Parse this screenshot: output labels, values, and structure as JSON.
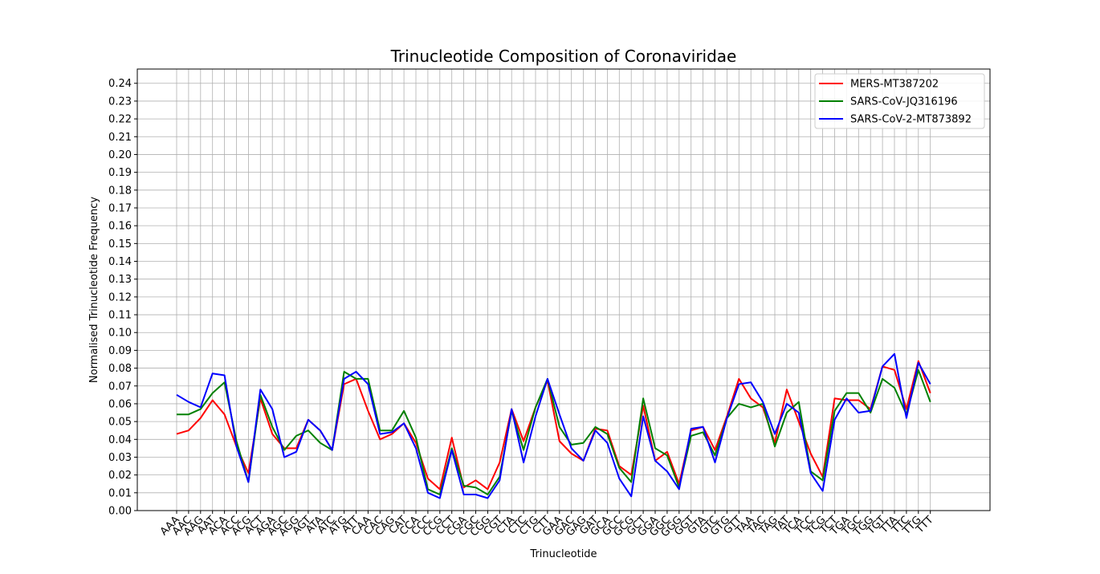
{
  "chart_data": {
    "type": "line",
    "title": "Trinucleotide Composition of Coronaviridae",
    "xlabel": "Trinucleotide",
    "ylabel": "Normalised Trinucleotide Frequency",
    "ylim": [
      0,
      0.248
    ],
    "yticks": [
      "0.00",
      "0.01",
      "0.02",
      "0.03",
      "0.04",
      "0.05",
      "0.06",
      "0.07",
      "0.08",
      "0.09",
      "0.10",
      "0.11",
      "0.12",
      "0.13",
      "0.14",
      "0.15",
      "0.16",
      "0.17",
      "0.18",
      "0.19",
      "0.20",
      "0.21",
      "0.22",
      "0.23",
      "0.24"
    ],
    "grid": true,
    "legend_position": "top-right",
    "categories": [
      "AAA",
      "AAC",
      "AAG",
      "AAT",
      "ACA",
      "ACC",
      "ACG",
      "ACT",
      "AGA",
      "AGC",
      "AGG",
      "AGT",
      "ATA",
      "ATC",
      "ATG",
      "ATT",
      "CAA",
      "CAC",
      "CAG",
      "CAT",
      "CCA",
      "CCC",
      "CCG",
      "CCT",
      "CGA",
      "CGC",
      "CGG",
      "CGT",
      "CTA",
      "CTC",
      "CTG",
      "CTT",
      "GAA",
      "GAC",
      "GAG",
      "GAT",
      "GCA",
      "GCC",
      "GCG",
      "GCT",
      "GGA",
      "GGC",
      "GGG",
      "GGT",
      "GTA",
      "GTC",
      "GTG",
      "GTT",
      "TAA",
      "TAC",
      "TAG",
      "TAT",
      "TCA",
      "TCC",
      "TCG",
      "TCT",
      "TGA",
      "TGC",
      "TGG",
      "TGT",
      "TTA",
      "TTC",
      "TTG",
      "TTT"
    ],
    "series": [
      {
        "name": "MERS-MT387202",
        "color": "#ff0000",
        "values": [
          0.043,
          0.045,
          0.052,
          0.062,
          0.054,
          0.036,
          0.021,
          0.063,
          0.043,
          0.035,
          0.035,
          0.051,
          0.045,
          0.034,
          0.071,
          0.074,
          0.056,
          0.04,
          0.043,
          0.049,
          0.038,
          0.018,
          0.012,
          0.041,
          0.013,
          0.017,
          0.012,
          0.027,
          0.057,
          0.039,
          0.058,
          0.073,
          0.039,
          0.032,
          0.028,
          0.046,
          0.045,
          0.025,
          0.02,
          0.059,
          0.028,
          0.033,
          0.015,
          0.045,
          0.047,
          0.034,
          0.053,
          0.074,
          0.063,
          0.058,
          0.038,
          0.068,
          0.05,
          0.032,
          0.019,
          0.063,
          0.062,
          0.062,
          0.057,
          0.081,
          0.079,
          0.057,
          0.084,
          0.066
        ]
      },
      {
        "name": "SARS-CoV-JQ316196",
        "color": "#008000",
        "values": [
          0.054,
          0.054,
          0.057,
          0.066,
          0.072,
          0.039,
          0.016,
          0.065,
          0.047,
          0.034,
          0.042,
          0.045,
          0.038,
          0.034,
          0.078,
          0.074,
          0.074,
          0.045,
          0.045,
          0.056,
          0.041,
          0.012,
          0.009,
          0.035,
          0.014,
          0.013,
          0.009,
          0.019,
          0.056,
          0.034,
          0.058,
          0.074,
          0.047,
          0.037,
          0.038,
          0.047,
          0.043,
          0.024,
          0.016,
          0.063,
          0.035,
          0.031,
          0.013,
          0.042,
          0.044,
          0.031,
          0.052,
          0.06,
          0.058,
          0.06,
          0.036,
          0.055,
          0.061,
          0.022,
          0.017,
          0.056,
          0.066,
          0.066,
          0.055,
          0.074,
          0.069,
          0.054,
          0.079,
          0.061
        ]
      },
      {
        "name": "SARS-CoV-2-MT873892",
        "color": "#0000ff",
        "values": [
          0.065,
          0.061,
          0.058,
          0.077,
          0.076,
          0.036,
          0.016,
          0.068,
          0.057,
          0.03,
          0.033,
          0.051,
          0.045,
          0.034,
          0.074,
          0.078,
          0.071,
          0.043,
          0.044,
          0.049,
          0.035,
          0.01,
          0.007,
          0.034,
          0.009,
          0.009,
          0.007,
          0.017,
          0.057,
          0.027,
          0.053,
          0.074,
          0.054,
          0.035,
          0.028,
          0.045,
          0.038,
          0.018,
          0.008,
          0.053,
          0.028,
          0.022,
          0.012,
          0.046,
          0.047,
          0.027,
          0.052,
          0.071,
          0.072,
          0.061,
          0.043,
          0.06,
          0.055,
          0.021,
          0.011,
          0.051,
          0.063,
          0.055,
          0.056,
          0.081,
          0.088,
          0.052,
          0.083,
          0.071
        ]
      }
    ]
  }
}
